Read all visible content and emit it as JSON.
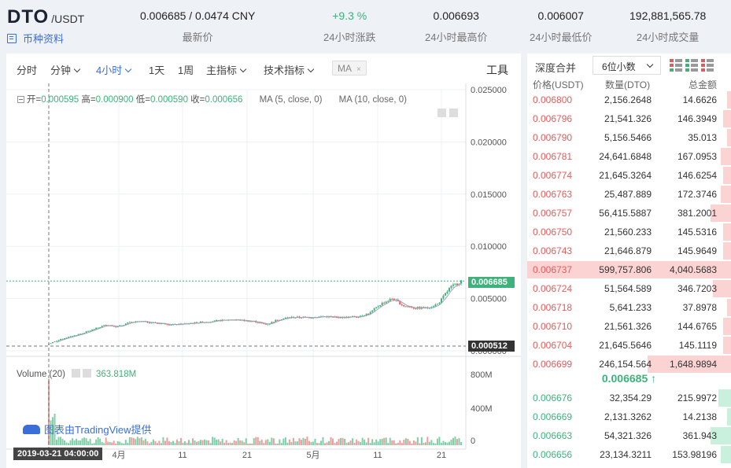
{
  "pair": {
    "base": "DTO",
    "quote": "/USDT"
  },
  "coin_info_label": "币种资料",
  "stats": [
    {
      "value": "0.006685 / 0.0474 CNY",
      "label": "最新价",
      "color": "#222222"
    },
    {
      "value": "+9.3 %",
      "label": "24小时涨跌",
      "color": "#3db27a"
    },
    {
      "value": "0.006693",
      "label": "24小时最高价",
      "color": "#222222"
    },
    {
      "value": "0.006007",
      "label": "24小时最低价",
      "color": "#222222"
    },
    {
      "value": "192,881,565.78",
      "label": "24小时成交量",
      "color": "#222222"
    }
  ],
  "toolbar": {
    "items": [
      "分时",
      "分钟",
      "4小时",
      "1天",
      "1周",
      "主指标",
      "技术指标"
    ],
    "active": "4小时",
    "ma_tag": "MA",
    "ma_tag_close": "×",
    "tools": "工具"
  },
  "legend": {
    "open_label": "开=",
    "open": "0.000595",
    "high_label": "高=",
    "high": "0.000900",
    "low_label": "低=",
    "low": "0.000590",
    "close_label": "收=",
    "close": "0.000656",
    "ma5": "MA (5, close, 0)",
    "ma10": "MA (10, close, 0)",
    "volume_label": "Volume (20)",
    "volume_value": "363.818M"
  },
  "chart_data": {
    "type": "candlestick",
    "price_axis": [
      "0.025000",
      "0.020000",
      "0.015000",
      "0.010000",
      "0.005000",
      "0.000000"
    ],
    "volume_axis": [
      "800M",
      "400M",
      "0"
    ],
    "time_axis": [
      "4月",
      "11",
      "21",
      "5月",
      "11",
      "21"
    ],
    "last_price_tag": "0.006685",
    "low_price_tag": "0.000512",
    "ylim": [
      0,
      0.025
    ],
    "approx_close_series": [
      0.00066,
      0.0011,
      0.0014,
      0.0017,
      0.0021,
      0.0025,
      0.0023,
      0.0027,
      0.0028,
      0.0027,
      0.0026,
      0.0025,
      0.0026,
      0.0027,
      0.0028,
      0.0029,
      0.003,
      0.0029,
      0.0028,
      0.0025,
      0.003,
      0.0032,
      0.0032,
      0.0032,
      0.0033,
      0.0032,
      0.0032,
      0.0033,
      0.0036,
      0.0045,
      0.005,
      0.0043,
      0.0041,
      0.0041,
      0.0045,
      0.006,
      0.0067
    ],
    "cursor_date": "2019-03-21 04:00:00"
  },
  "attribution": "图表由TradingView提供",
  "book": {
    "depth_label": "深度合并",
    "precision": "6位小数",
    "columns": [
      "价格(USDT)",
      "数量(DTO)",
      "总金额"
    ],
    "asks": [
      {
        "price": "0.006800",
        "qty": "2,156.2648",
        "total": "14.6626",
        "depth": 0.02
      },
      {
        "price": "0.006796",
        "qty": "21,541.326",
        "total": "146.3949",
        "depth": 0.04
      },
      {
        "price": "0.006790",
        "qty": "5,156.5466",
        "total": "35.013",
        "depth": 0.02
      },
      {
        "price": "0.006781",
        "qty": "24,641.6848",
        "total": "167.0953",
        "depth": 0.05
      },
      {
        "price": "0.006774",
        "qty": "21,645.3264",
        "total": "146.6254",
        "depth": 0.04
      },
      {
        "price": "0.006763",
        "qty": "25,487.889",
        "total": "172.3746",
        "depth": 0.05
      },
      {
        "price": "0.006757",
        "qty": "56,415.5887",
        "total": "381.2001",
        "depth": 0.1
      },
      {
        "price": "0.006750",
        "qty": "21,560.233",
        "total": "145.5316",
        "depth": 0.04
      },
      {
        "price": "0.006743",
        "qty": "21,646.879",
        "total": "145.9649",
        "depth": 0.04
      },
      {
        "price": "0.006737",
        "qty": "599,757.806",
        "total": "4,040.5683",
        "depth": 1.0
      },
      {
        "price": "0.006724",
        "qty": "51,564.589",
        "total": "346.7203",
        "depth": 0.09
      },
      {
        "price": "0.006718",
        "qty": "5,641.233",
        "total": "37.8978",
        "depth": 0.02
      },
      {
        "price": "0.006710",
        "qty": "21,561.326",
        "total": "144.6765",
        "depth": 0.04
      },
      {
        "price": "0.006704",
        "qty": "21,645.5646",
        "total": "145.1119",
        "depth": 0.04
      },
      {
        "price": "0.006699",
        "qty": "246,154.564",
        "total": "1,648.9894",
        "depth": 0.41
      }
    ],
    "last_price": "0.006685 ↑",
    "bids": [
      {
        "price": "0.006676",
        "qty": "32,354.29",
        "total": "215.9972",
        "depth": 0.06
      },
      {
        "price": "0.006669",
        "qty": "2,131.3262",
        "total": "14.2138",
        "depth": 0.02
      },
      {
        "price": "0.006663",
        "qty": "54,321.326",
        "total": "361.943",
        "depth": 0.1
      },
      {
        "price": "0.006656",
        "qty": "23,134.3211",
        "total": "153.98196",
        "depth": 0.05
      }
    ]
  }
}
